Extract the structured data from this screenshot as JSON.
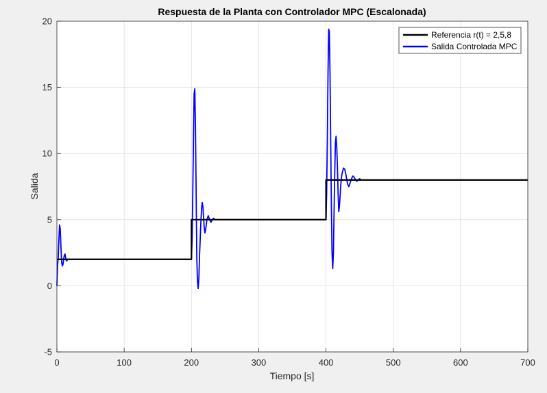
{
  "chart_data": {
    "type": "line",
    "title": "Respuesta de la Planta con Controlador MPC (Escalonada)",
    "xlabel": "Tiempo [s]",
    "ylabel": "Salida",
    "xlim": [
      0,
      700
    ],
    "ylim": [
      -5,
      20
    ],
    "x_ticks": [
      0,
      100,
      200,
      300,
      400,
      500,
      600,
      700
    ],
    "y_ticks": [
      -5,
      0,
      5,
      10,
      15,
      20
    ],
    "grid": true,
    "legend_position": "top-right",
    "series": [
      {
        "name": "Referencia r(t) = 2,5,8",
        "color": "#000000",
        "x": [
          0,
          200,
          200,
          400,
          400,
          700
        ],
        "y": [
          2,
          2,
          5,
          5,
          8,
          8
        ]
      },
      {
        "name": "Salida Controlada MPC",
        "color": "#0000ff",
        "x": [
          0,
          1,
          2,
          3,
          4,
          5,
          6,
          7,
          8,
          9,
          10,
          11,
          12,
          13,
          14,
          15,
          16,
          18,
          20,
          50,
          100,
          150,
          199,
          200,
          201,
          202,
          203,
          204,
          205,
          206,
          207,
          208,
          209,
          210,
          211,
          212,
          213,
          214,
          215,
          216,
          217,
          218,
          219,
          220,
          221,
          222,
          223,
          225,
          227,
          229,
          231,
          233,
          235,
          237,
          240,
          245,
          300,
          350,
          399,
          400,
          401,
          402,
          403,
          404,
          405,
          406,
          407,
          408,
          409,
          410,
          411,
          412,
          413,
          414,
          415,
          416,
          417,
          418,
          419,
          420,
          421,
          422,
          423,
          424,
          426,
          428,
          430,
          432,
          434,
          436,
          438,
          440,
          442,
          444,
          446,
          448,
          450,
          452,
          454,
          456,
          458,
          460,
          470,
          500,
          600,
          700
        ],
        "y": [
          0,
          1.5,
          2.2,
          3.5,
          4.6,
          4.3,
          3.0,
          1.8,
          1.5,
          1.6,
          2.0,
          2.3,
          2.4,
          2.1,
          1.9,
          1.9,
          2.0,
          2.0,
          2.0,
          2.0,
          2.0,
          2.0,
          2.0,
          2.0,
          3.5,
          7.0,
          11.0,
          14.5,
          14.9,
          12.0,
          7.0,
          2.0,
          0.3,
          -0.2,
          0.5,
          2.2,
          3.5,
          4.8,
          5.8,
          6.3,
          6.0,
          5.2,
          4.4,
          4.0,
          4.2,
          4.6,
          5.0,
          5.3,
          5.0,
          4.8,
          5.0,
          5.1,
          5.0,
          5.0,
          5.0,
          5.0,
          5.0,
          5.0,
          5.0,
          5.0,
          7.0,
          11.0,
          16.0,
          19.4,
          19.2,
          16.0,
          11.0,
          6.0,
          2.5,
          1.3,
          2.5,
          5.5,
          8.5,
          10.8,
          11.3,
          10.5,
          9.0,
          7.0,
          5.6,
          6.0,
          6.8,
          7.6,
          8.2,
          8.5,
          8.9,
          8.8,
          8.3,
          7.7,
          7.5,
          7.8,
          8.1,
          8.3,
          8.2,
          8.0,
          7.9,
          8.0,
          8.1,
          8.0,
          8.0,
          8.0,
          8.0,
          8.0,
          8.0,
          8.0,
          8.0,
          8.0
        ]
      }
    ]
  }
}
